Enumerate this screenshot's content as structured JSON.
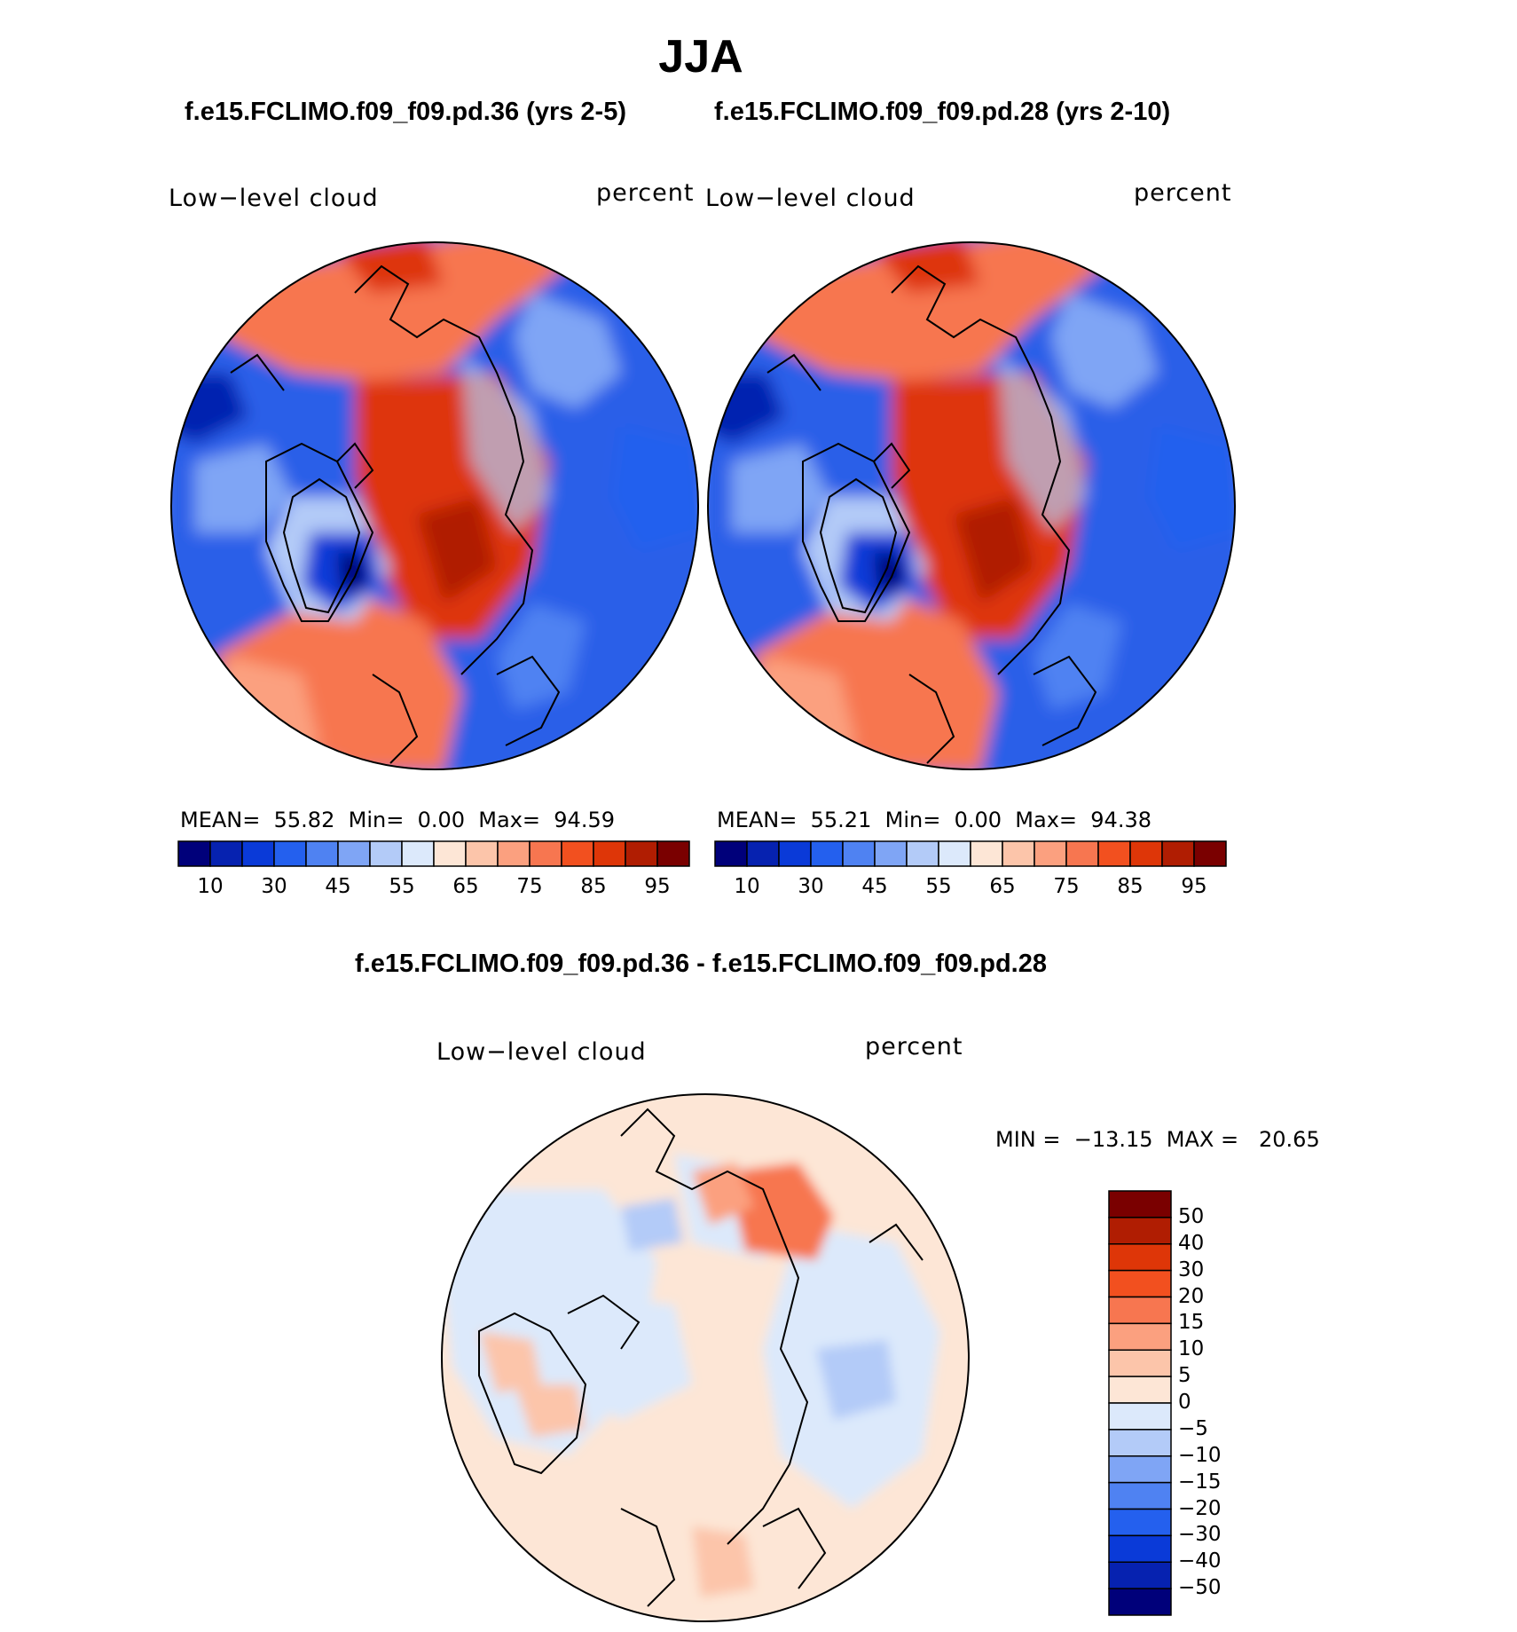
{
  "season": "JJA",
  "panels": [
    {
      "case_title": "f.e15.FCLIMO.f09_f09.pd.36 (yrs 2-5)",
      "variable_label": "Low−level cloud",
      "units_label": "percent",
      "stats": {
        "mean_label": "MEAN=",
        "mean": "55.82",
        "min_label": "Min=",
        "min": "0.00",
        "max_label": "Max=",
        "max": "94.59"
      }
    },
    {
      "case_title": "f.e15.FCLIMO.f09_f09.pd.28 (yrs 2-10)",
      "variable_label": "Low−level cloud",
      "units_label": "percent",
      "stats": {
        "mean_label": "MEAN=",
        "mean": "55.21",
        "min_label": "Min=",
        "min": "0.00",
        "max_label": "Max=",
        "max": "94.38"
      }
    }
  ],
  "field_colorbar": {
    "tick_labels": [
      "10",
      "30",
      "45",
      "55",
      "65",
      "75",
      "85",
      "95"
    ],
    "colors": [
      "#00007a",
      "#0622b0",
      "#0a3ad8",
      "#2460ee",
      "#4f82f2",
      "#7fa5f5",
      "#b3cbf8",
      "#dce9fb",
      "#fde6d6",
      "#fcc5aa",
      "#fba07f",
      "#f77650",
      "#f2501f",
      "#de3608",
      "#b01d02",
      "#7a0000"
    ]
  },
  "difference": {
    "title": "f.e15.FCLIMO.f09_f09.pd.36 - f.e15.FCLIMO.f09_f09.pd.28",
    "variable_label": "Low−level cloud",
    "units_label": "percent",
    "minmax_text": "MIN =  −13.15  MAX =   20.65",
    "colorbar_ticks": [
      "50",
      "40",
      "30",
      "20",
      "15",
      "10",
      "5",
      "0",
      "−5",
      "−10",
      "−15",
      "−20",
      "−30",
      "−40",
      "−50"
    ],
    "colorbar_colors": [
      "#7a0000",
      "#b01d02",
      "#de3608",
      "#f2501f",
      "#f77650",
      "#fba07f",
      "#fcc5aa",
      "#fde6d6",
      "#dce9fb",
      "#b3cbf8",
      "#7fa5f5",
      "#4f82f2",
      "#2460ee",
      "#0a3ad8",
      "#0622b0",
      "#00007a"
    ]
  }
}
